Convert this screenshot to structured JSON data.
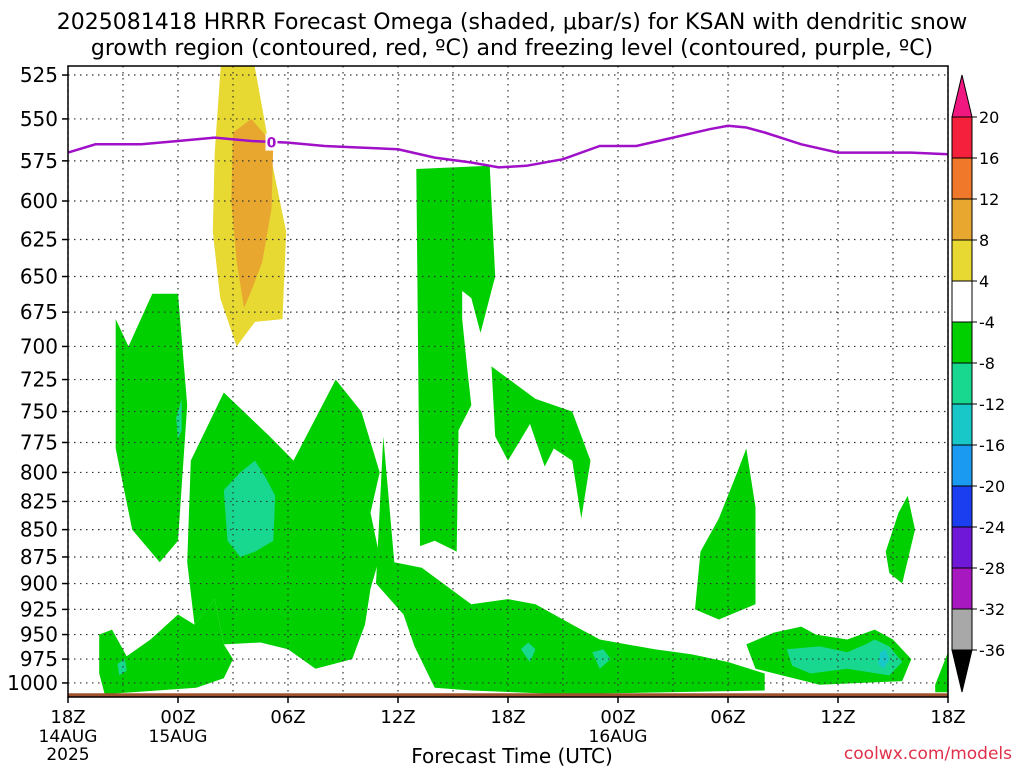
{
  "title": {
    "line1": "2025081418 HRRR Forecast Omega (shaded, μbar/s) for KSAN with dendritic snow",
    "line2": "growth region (contoured, red, ºC) and freezing level (contoured, purple, ºC)"
  },
  "credit": "coolwx.com/models",
  "chart_data": {
    "type": "heatmap",
    "xlabel": "Forecast Time (UTC)",
    "ylabel": "",
    "x_range_hours": [
      0,
      48
    ],
    "y_range_hpa": [
      1015,
      520
    ],
    "y_scale": "log-pressure (inverted)",
    "grid": true,
    "y_ticks": [
      525,
      550,
      575,
      600,
      625,
      650,
      675,
      700,
      725,
      750,
      775,
      800,
      825,
      850,
      875,
      900,
      925,
      950,
      975,
      1000
    ],
    "x_ticks": [
      {
        "h": 0,
        "label": "18Z",
        "sub": [
          "14AUG",
          "2025"
        ]
      },
      {
        "h": 6,
        "label": "00Z",
        "sub": [
          "15AUG"
        ]
      },
      {
        "h": 12,
        "label": "06Z",
        "sub": []
      },
      {
        "h": 18,
        "label": "12Z",
        "sub": []
      },
      {
        "h": 24,
        "label": "18Z",
        "sub": []
      },
      {
        "h": 30,
        "label": "00Z",
        "sub": [
          "16AUG"
        ]
      },
      {
        "h": 36,
        "label": "06Z",
        "sub": []
      },
      {
        "h": 42,
        "label": "12Z",
        "sub": []
      },
      {
        "h": 48,
        "label": "18Z",
        "sub": []
      }
    ],
    "colorbar": {
      "labels": [
        "20",
        "16",
        "12",
        "8",
        "4",
        "-4",
        "-8",
        "-12",
        "-16",
        "-20",
        "-24",
        "-28",
        "-32",
        "-36"
      ],
      "colors": [
        "#f5203c",
        "#f0782a",
        "#e8a830",
        "#e8d832",
        "#ffffff",
        "#00d000",
        "#18d890",
        "#18c8c8",
        "#1a9af0",
        "#1a3ef0",
        "#7018d8",
        "#a818c0",
        "#a8a8a8"
      ],
      "top_arrow_color": "#f01880",
      "bottom_arrow_color": "#000000"
    },
    "freezing_level": {
      "color": "#a010c8",
      "contour_label": "0",
      "points": [
        [
          0,
          570
        ],
        [
          1.5,
          565
        ],
        [
          4,
          565
        ],
        [
          6,
          563
        ],
        [
          8,
          561
        ],
        [
          10,
          563
        ],
        [
          12,
          564
        ],
        [
          14,
          566
        ],
        [
          16,
          567
        ],
        [
          18,
          568
        ],
        [
          20,
          573
        ],
        [
          22,
          576
        ],
        [
          23.5,
          579
        ],
        [
          25,
          578
        ],
        [
          27,
          574
        ],
        [
          29,
          566
        ],
        [
          31,
          566
        ],
        [
          33,
          561
        ],
        [
          35,
          556
        ],
        [
          36,
          554
        ],
        [
          37,
          555
        ],
        [
          38,
          558
        ],
        [
          40,
          565
        ],
        [
          42,
          570
        ],
        [
          44,
          570
        ],
        [
          46,
          570
        ],
        [
          48,
          571
        ]
      ]
    },
    "omega_regions": [
      {
        "value": "-4 to -8",
        "color": "#00d000",
        "points": [
          [
            2.6,
            680
          ],
          [
            3.3,
            700
          ],
          [
            4.6,
            662
          ],
          [
            6.0,
            662
          ],
          [
            6.5,
            745
          ],
          [
            6.0,
            860
          ],
          [
            5.0,
            880
          ],
          [
            3.5,
            850
          ],
          [
            2.6,
            780
          ]
        ]
      },
      {
        "value": "-4 to -8",
        "color": "#00d000",
        "points": [
          [
            6.5,
            880
          ],
          [
            6.7,
            790
          ],
          [
            8.5,
            735
          ],
          [
            11.0,
            770
          ],
          [
            12.3,
            790
          ],
          [
            14.6,
            725
          ],
          [
            16.0,
            750
          ],
          [
            17.0,
            800
          ],
          [
            16.5,
            835
          ],
          [
            17.0,
            875
          ],
          [
            16.5,
            905
          ],
          [
            16.2,
            940
          ],
          [
            15.5,
            975
          ],
          [
            13.5,
            985
          ],
          [
            12.0,
            965
          ],
          [
            10.5,
            958
          ],
          [
            8.5,
            960
          ],
          [
            8.0,
            915
          ],
          [
            6.9,
            940
          ]
        ]
      },
      {
        "value": "-4 to -8",
        "color": "#00d000",
        "points": [
          [
            1.7,
            950
          ],
          [
            2.4,
            945
          ],
          [
            3.2,
            972
          ],
          [
            4.5,
            955
          ],
          [
            6.0,
            930
          ],
          [
            6.9,
            940
          ],
          [
            8.0,
            915
          ],
          [
            8.5,
            960
          ],
          [
            9.0,
            975
          ],
          [
            8.5,
            995
          ],
          [
            7.0,
            1005
          ],
          [
            2.0,
            1012
          ],
          [
            1.7,
            990
          ]
        ]
      },
      {
        "value": "-4 to -8",
        "color": "#00d000",
        "points": [
          [
            16.8,
            900
          ],
          [
            17.2,
            770
          ],
          [
            17.8,
            880
          ],
          [
            19.3,
            885
          ],
          [
            22.0,
            920
          ],
          [
            24.0,
            915
          ],
          [
            25.5,
            920
          ],
          [
            27.5,
            940
          ],
          [
            29.0,
            955
          ],
          [
            32.0,
            965
          ],
          [
            34.0,
            970
          ],
          [
            36.0,
            978
          ],
          [
            38.0,
            990
          ],
          [
            38.0,
            1008
          ],
          [
            27.0,
            1012
          ],
          [
            22.0,
            1008
          ],
          [
            20.0,
            1005
          ],
          [
            18.9,
            962
          ],
          [
            18.3,
            930
          ]
        ]
      },
      {
        "value": "-4 to -8",
        "color": "#00d000",
        "points": [
          [
            19.0,
            580
          ],
          [
            23.0,
            578
          ],
          [
            23.3,
            650
          ],
          [
            22.5,
            690
          ],
          [
            22.0,
            665
          ],
          [
            21.5,
            660
          ],
          [
            21.5,
            680
          ],
          [
            21.8,
            720
          ],
          [
            22.0,
            745
          ],
          [
            21.3,
            765
          ],
          [
            21.2,
            870
          ],
          [
            20.0,
            860
          ],
          [
            19.2,
            865
          ]
        ]
      },
      {
        "value": "-4 to -8",
        "color": "#00d000",
        "points": [
          [
            23.1,
            715
          ],
          [
            25.5,
            740
          ],
          [
            27.5,
            750
          ],
          [
            28.5,
            790
          ],
          [
            28.0,
            840
          ],
          [
            27.5,
            790
          ],
          [
            26.5,
            780
          ],
          [
            26.0,
            795
          ],
          [
            25.2,
            760
          ],
          [
            24.0,
            790
          ],
          [
            23.3,
            770
          ]
        ]
      },
      {
        "value": "-4 to -8",
        "color": "#00d000",
        "points": [
          [
            34.2,
            925
          ],
          [
            34.5,
            870
          ],
          [
            35.5,
            840
          ],
          [
            36.5,
            800
          ],
          [
            37.0,
            780
          ],
          [
            37.5,
            830
          ],
          [
            37.5,
            920
          ],
          [
            35.5,
            935
          ]
        ]
      },
      {
        "value": "-4 to -8",
        "color": "#00d000",
        "points": [
          [
            37.0,
            960
          ],
          [
            38.5,
            948
          ],
          [
            40.0,
            942
          ],
          [
            40.8,
            950
          ],
          [
            42.5,
            955
          ],
          [
            44.0,
            945
          ],
          [
            45.0,
            955
          ],
          [
            46.0,
            975
          ],
          [
            45.5,
            998
          ],
          [
            41.0,
            1002
          ],
          [
            37.5,
            985
          ]
        ]
      },
      {
        "value": "-4 to -8",
        "color": "#00d000",
        "points": [
          [
            44.6,
            870
          ],
          [
            45.3,
            835
          ],
          [
            45.8,
            820
          ],
          [
            46.2,
            850
          ],
          [
            45.5,
            900
          ],
          [
            44.8,
            890
          ]
        ]
      },
      {
        "value": "-4 to -8",
        "color": "#00d000",
        "points": [
          [
            47.3,
            1002
          ],
          [
            48.0,
            968
          ],
          [
            48.0,
            1010
          ],
          [
            47.3,
            1010
          ]
        ]
      },
      {
        "value": "-8 to -12",
        "color": "#18d890",
        "points": [
          [
            5.9,
            755
          ],
          [
            6.2,
            740
          ],
          [
            6.2,
            765
          ],
          [
            6.0,
            772
          ]
        ]
      },
      {
        "value": "-8 to -12",
        "color": "#18d890",
        "points": [
          [
            8.5,
            815
          ],
          [
            9.4,
            800
          ],
          [
            10.2,
            790
          ],
          [
            10.8,
            805
          ],
          [
            11.3,
            820
          ],
          [
            11.2,
            860
          ],
          [
            10.2,
            870
          ],
          [
            9.4,
            875
          ],
          [
            8.7,
            860
          ]
        ]
      },
      {
        "value": "-8 to -12",
        "color": "#18d890",
        "points": [
          [
            2.7,
            980
          ],
          [
            3.1,
            975
          ],
          [
            3.2,
            987
          ],
          [
            2.8,
            992
          ]
        ]
      },
      {
        "value": "-8 to -12",
        "color": "#18d890",
        "points": [
          [
            24.7,
            965
          ],
          [
            25.1,
            958
          ],
          [
            25.5,
            965
          ],
          [
            25.2,
            978
          ]
        ]
      },
      {
        "value": "-8 to -12",
        "color": "#18d890",
        "points": [
          [
            28.6,
            968
          ],
          [
            29.2,
            965
          ],
          [
            29.6,
            975
          ],
          [
            29.0,
            985
          ]
        ]
      },
      {
        "value": "-8 to -12",
        "color": "#18d890",
        "points": [
          [
            39.2,
            965
          ],
          [
            41.0,
            962
          ],
          [
            42.5,
            968
          ],
          [
            43.5,
            960
          ],
          [
            44.0,
            955
          ],
          [
            44.8,
            962
          ],
          [
            45.5,
            978
          ],
          [
            44.8,
            992
          ],
          [
            42.5,
            985
          ],
          [
            40.5,
            990
          ],
          [
            39.5,
            982
          ]
        ]
      },
      {
        "value": "-12 to -16",
        "color": "#18c8c8",
        "points": [
          [
            44.3,
            968
          ],
          [
            44.6,
            965
          ],
          [
            44.8,
            975
          ],
          [
            44.5,
            985
          ],
          [
            44.2,
            980
          ]
        ]
      },
      {
        "value": "4 to 8",
        "color": "#e8d832",
        "points": [
          [
            8.4,
            510
          ],
          [
            10.0,
            510
          ],
          [
            11.2,
            580
          ],
          [
            11.9,
            620
          ],
          [
            11.7,
            680
          ],
          [
            10.2,
            682
          ],
          [
            9.2,
            700
          ],
          [
            8.3,
            665
          ],
          [
            7.9,
            620
          ],
          [
            8.0,
            570
          ]
        ]
      },
      {
        "value": "8 to 12",
        "color": "#e8a830",
        "points": [
          [
            9.0,
            558
          ],
          [
            10.0,
            550
          ],
          [
            11.2,
            565
          ],
          [
            11.1,
            605
          ],
          [
            10.6,
            640
          ],
          [
            10.0,
            660
          ],
          [
            9.6,
            672
          ],
          [
            9.2,
            640
          ],
          [
            8.9,
            600
          ]
        ]
      }
    ],
    "ground": {
      "color": "#a0522d",
      "top_hpa": 1011
    }
  }
}
